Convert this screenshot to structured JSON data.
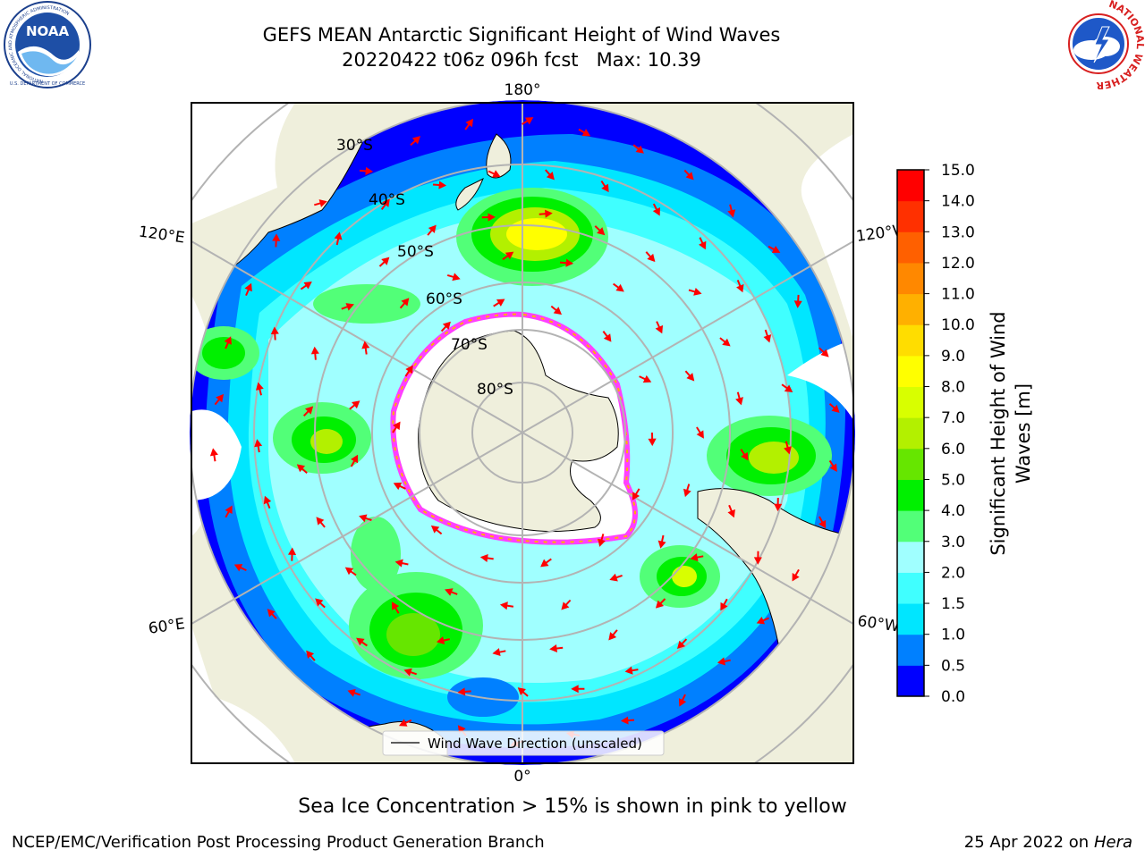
{
  "title": {
    "line1": "GEFS MEAN Antarctic Significant Height of Wind Waves",
    "line2": "20220422 t06z 096h fcst   Max: 10.39"
  },
  "map": {
    "projection": "south-polar-stereographic",
    "longitude_labels": {
      "top": "180°",
      "bottom": "0°",
      "upper_left": "120°E",
      "upper_right": "120°W",
      "lower_left": "60°E",
      "lower_right": "60°W"
    },
    "latitude_labels": [
      "30°S",
      "40°S",
      "50°S",
      "60°S",
      "70°S",
      "80°S"
    ],
    "colors": {
      "land": "#efefdc",
      "arrow": "#ff0000",
      "sea_ice": "#ff40ff",
      "graticule": "#b3b3b3"
    },
    "legend": {
      "label": "Wind Wave Direction (unscaled)",
      "placement": "bottom-center"
    }
  },
  "colorbar": {
    "label": "Significant Height of Wind Waves [m]",
    "label_line1": "Significant Height of Wind",
    "label_line2": "Waves [m]",
    "ticks": [
      "0.0",
      "0.5",
      "1.0",
      "1.5",
      "2.0",
      "3.0",
      "4.0",
      "5.0",
      "6.0",
      "7.0",
      "8.0",
      "9.0",
      "10.0",
      "11.0",
      "12.0",
      "13.0",
      "14.0",
      "15.0"
    ],
    "colors": [
      "#0000ff",
      "#0080ff",
      "#00e6ff",
      "#40ffff",
      "#a0ffff",
      "#52ff78",
      "#00f000",
      "#66e600",
      "#b3f000",
      "#d8ff00",
      "#ffff00",
      "#ffdd00",
      "#ffb000",
      "#ff8800",
      "#ff6000",
      "#ff3000",
      "#ff0000"
    ]
  },
  "footer": {
    "note": "Sea Ice Concentration > 15% is shown in pink to yellow",
    "org": "NCEP/EMC/Verification Post Processing Product Generation Branch",
    "date_prefix": "25 Apr 2022 on ",
    "machine": "Hera"
  },
  "logos": {
    "left": "NOAA",
    "left_ring_top": "NATIONAL OCEANIC AND ATMOSPHERIC ADMINISTRATION",
    "left_ring_bottom": "U.S. DEPARTMENT OF COMMERCE",
    "right_ring": "NATIONAL WEATHER SERVICE"
  }
}
